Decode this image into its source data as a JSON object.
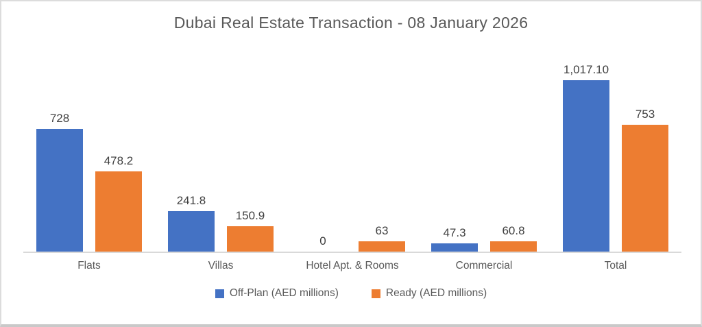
{
  "chart_data": {
    "type": "bar",
    "title": "Dubai Real Estate Transaction - 08 January 2026",
    "categories": [
      "Flats",
      "Villas",
      "Hotel Apt. & Rooms",
      "Commercial",
      "Total"
    ],
    "series": [
      {
        "name": "Off-Plan (AED millions)",
        "color": "#4472C4",
        "values": [
          728,
          241.8,
          0,
          47.3,
          1017.1
        ],
        "labels": [
          "728",
          "241.8",
          "0",
          "47.3",
          "1,017.10"
        ]
      },
      {
        "name": "Ready (AED millions)",
        "color": "#ED7D31",
        "values": [
          478.2,
          150.9,
          63,
          60.8,
          753
        ],
        "labels": [
          "478.2",
          "150.9",
          "63",
          "60.8",
          "753"
        ]
      }
    ],
    "ylim": [
      0,
      1100
    ],
    "grid": false,
    "data_labels": true,
    "legend_position": "bottom",
    "colors": {
      "title_text": "#595959",
      "data_label_text": "#404040",
      "category_text": "#595959",
      "axis_line": "#d9d9d9",
      "frame_border": "#dcdcdc"
    }
  }
}
